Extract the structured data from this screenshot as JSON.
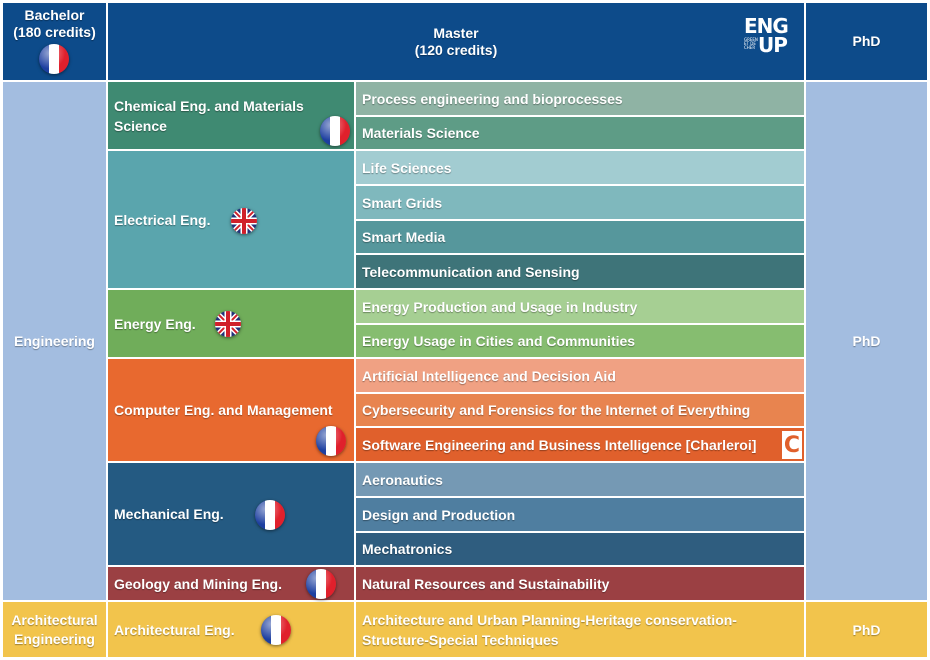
{
  "header": {
    "bachelor": "Bachelor",
    "bachelor_credits": "(180 credits)",
    "master": "Master",
    "master_credits": "(120 credits)",
    "phd": "PhD",
    "logo": "ENG UP"
  },
  "rows": {
    "engineering": {
      "label": "Engineering",
      "phd": "PhD"
    },
    "architectural": {
      "label_line1": "Architectural",
      "label_line2": "Engineering",
      "phd": "PhD"
    }
  },
  "departments": [
    {
      "name": "Chemical Eng. and Materials Science",
      "name_line1": "Chemical Eng. and Materials",
      "name_line2": "Science",
      "flag": "france-flag-icon",
      "color": "#3f8a72",
      "masters": [
        {
          "name": "Process engineering and bioprocesses",
          "color": "#8fb3a4"
        },
        {
          "name": "Materials Science",
          "color": "#5e9c86"
        }
      ]
    },
    {
      "name": "Electrical Eng.",
      "flag": "uk-flag-icon",
      "color": "#5aa5ad",
      "masters": [
        {
          "name": "Life Sciences",
          "color": "#a2ccd1"
        },
        {
          "name": "Smart Grids",
          "color": "#7fb8bd"
        },
        {
          "name": "Smart Media",
          "color": "#56979c"
        },
        {
          "name": "Telecommunication and Sensing",
          "color": "#3e7479"
        }
      ]
    },
    {
      "name": "Energy Eng.",
      "flag": "uk-flag-icon",
      "color": "#70ad5a",
      "masters": [
        {
          "name": "Energy Production and Usage in Industry",
          "color": "#a6cf93"
        },
        {
          "name": "Energy Usage in Cities and Communities",
          "color": "#86bd70"
        }
      ]
    },
    {
      "name": "Computer Eng. and Management",
      "flag": "france-flag-icon",
      "color": "#e8692f",
      "masters": [
        {
          "name": "Artificial Intelligence and Decision Aid",
          "color": "#f0a183"
        },
        {
          "name": "Cybersecurity and Forensics for the Internet of Everything",
          "color": "#e8844f"
        },
        {
          "name": "Software Engineering and Business Intelligence [Charleroi]",
          "color": "#e0602c"
        }
      ]
    },
    {
      "name": "Mechanical Eng.",
      "flag": "france-flag-icon",
      "color": "#245a82",
      "masters": [
        {
          "name": "Aeronautics",
          "color": "#7599b4"
        },
        {
          "name": "Design and Production",
          "color": "#4f7ea0"
        },
        {
          "name": "Mechatronics",
          "color": "#2f5d7f"
        }
      ]
    },
    {
      "name": "Geology and Mining Eng.",
      "flag": "france-flag-icon",
      "color": "#9b4043",
      "masters": [
        {
          "name": "Natural Resources and Sustainability",
          "color": "#9b4043"
        }
      ]
    },
    {
      "name": "Architectural Eng.",
      "flag": "france-flag-icon",
      "color": "#f2c44c",
      "masters": [
        {
          "name": "Architecture and Urban Planning-Heritage conservation-",
          "name_line2": "Structure-Special Techniques",
          "color": "#f2c44c"
        }
      ]
    }
  ],
  "colors": {
    "header": "#0d4b8a",
    "engineering_row": "#a3bde0",
    "architecture_row": "#f2c44c"
  }
}
